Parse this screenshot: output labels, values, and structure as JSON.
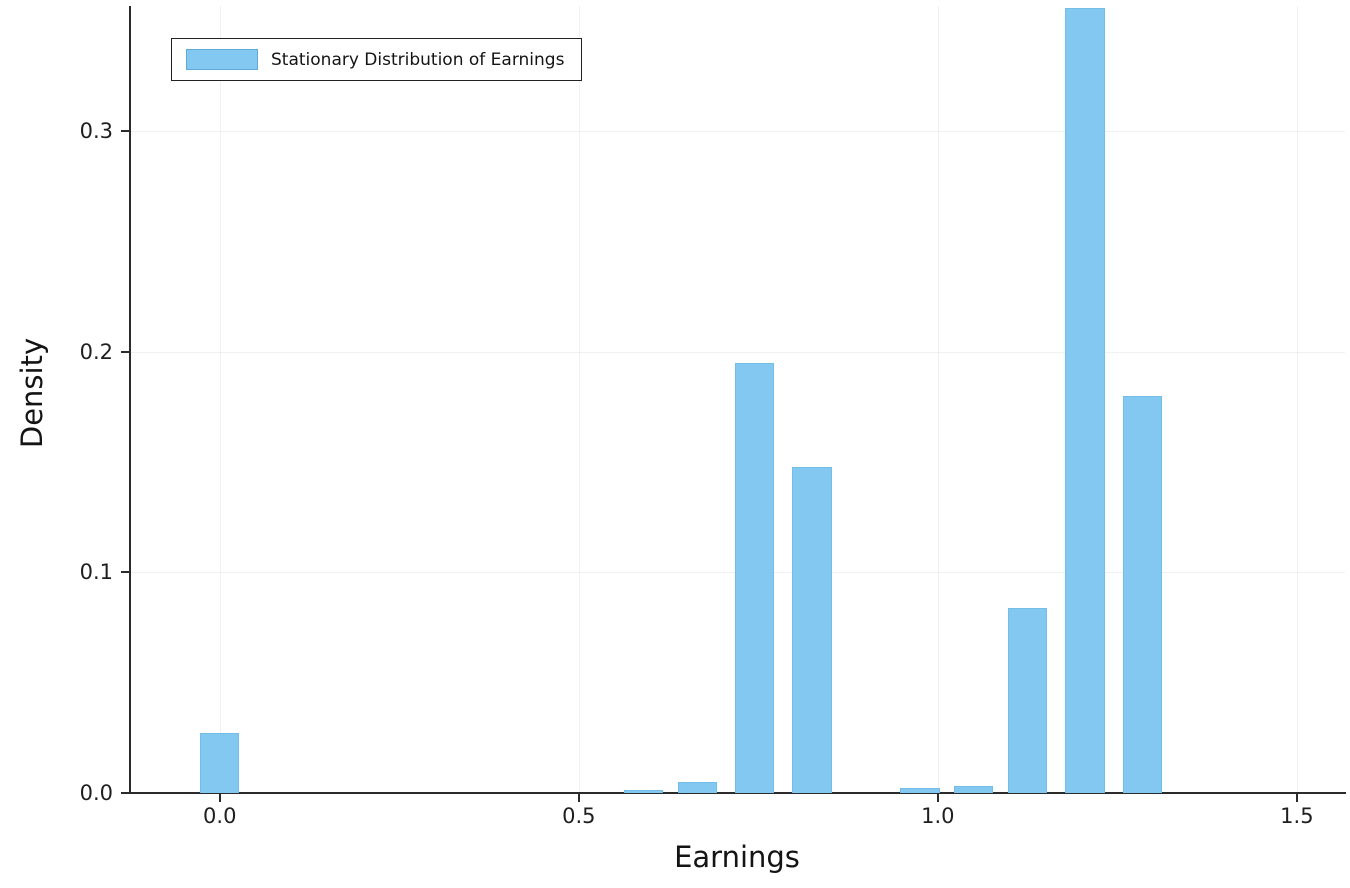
{
  "chart_data": {
    "type": "bar",
    "title": "",
    "xlabel": "Earnings",
    "ylabel": "Density",
    "legend": {
      "label": "Stationary Distribution of Earnings",
      "position": "top-left"
    },
    "bar_color": "#82C8F0",
    "bar_edge_color": "#5AAEDC",
    "axis_color": "#2b2b2b",
    "x": [
      0.0,
      0.59,
      0.665,
      0.745,
      0.825,
      0.975,
      1.05,
      1.125,
      1.205,
      1.285
    ],
    "values": [
      0.027,
      0.0015,
      0.005,
      0.195,
      0.148,
      0.0025,
      0.003,
      0.084,
      0.356,
      0.18
    ],
    "bar_width": 0.055,
    "xlim": [
      -0.125,
      1.567
    ],
    "ylim": [
      0,
      0.3568
    ],
    "x_ticks": [
      0.0,
      0.5,
      1.0,
      1.5
    ],
    "y_ticks": [
      0.0,
      0.1,
      0.2,
      0.3
    ],
    "x_tick_labels": [
      "0.0",
      "0.5",
      "1.0",
      "1.5"
    ],
    "y_tick_labels": [
      "0.0",
      "0.1",
      "0.2",
      "0.3"
    ],
    "grid": true,
    "legend_position": "top-left"
  }
}
